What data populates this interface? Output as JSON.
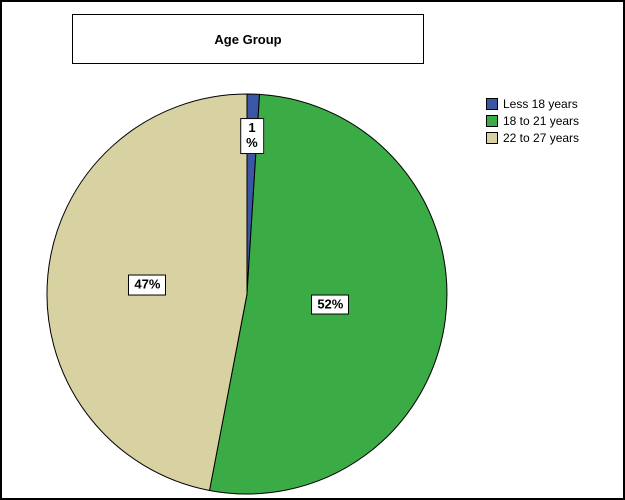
{
  "chart_data": {
    "type": "pie",
    "title": "Age Group",
    "categories": [
      "Less 18 years",
      "18 to 21 years",
      "22 to 27 years"
    ],
    "values": [
      1,
      52,
      47
    ],
    "slice_labels": [
      "1\n%",
      "52%",
      "47%"
    ],
    "colors": [
      "#3B56A5",
      "#3AAB45",
      "#D8D1A2"
    ],
    "legend_position": "top-right",
    "start_angle": "12 o'clock",
    "direction": "clockwise",
    "outline_color": "#000000",
    "background_color": "#ffffff"
  }
}
